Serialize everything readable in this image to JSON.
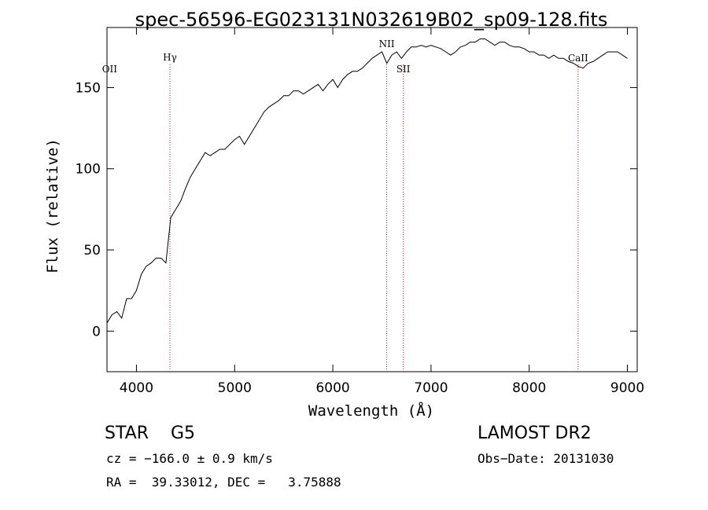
{
  "chart_data": {
    "type": "line",
    "title": "spec-56596-EG023131N032619B02_sp09-128.fits",
    "xlabel": "Wavelength (Å)",
    "ylabel": "Flux (relative)",
    "xlim": [
      3700,
      9100
    ],
    "ylim": [
      -25,
      187
    ],
    "xticks": [
      4000,
      5000,
      6000,
      7000,
      8000,
      9000
    ],
    "yticks": [
      0,
      50,
      100,
      150
    ],
    "grid": false,
    "line_color": "#000000",
    "marker_color": "#a52a2a",
    "series": [
      {
        "x": [
          3700,
          3750,
          3800,
          3850,
          3900,
          3950,
          4000,
          4050,
          4100,
          4150,
          4200,
          4250,
          4300,
          4350,
          4400,
          4450,
          4500,
          4550,
          4600,
          4650,
          4700,
          4750,
          4800,
          4850,
          4900,
          4950,
          5000,
          5050,
          5100,
          5150,
          5200,
          5250,
          5300,
          5350,
          5400,
          5450,
          5500,
          5550,
          5600,
          5650,
          5700,
          5750,
          5800,
          5850,
          5900,
          5950,
          6000,
          6050,
          6100,
          6150,
          6200,
          6250,
          6300,
          6350,
          6400,
          6450,
          6500,
          6550,
          6600,
          6650,
          6700,
          6750,
          6800,
          6850,
          6900,
          6950,
          7000,
          7050,
          7100,
          7150,
          7200,
          7250,
          7300,
          7350,
          7400,
          7450,
          7500,
          7550,
          7600,
          7650,
          7700,
          7750,
          7800,
          7850,
          7900,
          7950,
          8000,
          8050,
          8100,
          8150,
          8200,
          8250,
          8300,
          8350,
          8400,
          8450,
          8500,
          8550,
          8600,
          8650,
          8700,
          8750,
          8800,
          8850,
          8900,
          8950,
          9000
        ],
        "y": [
          5,
          10,
          12,
          8,
          20,
          20,
          25,
          35,
          40,
          42,
          45,
          45,
          42,
          70,
          75,
          80,
          88,
          95,
          100,
          105,
          110,
          108,
          110,
          112,
          112,
          115,
          118,
          120,
          115,
          120,
          125,
          130,
          135,
          138,
          140,
          142,
          145,
          145,
          148,
          148,
          146,
          148,
          150,
          152,
          148,
          152,
          155,
          150,
          155,
          158,
          160,
          160,
          162,
          165,
          168,
          170,
          172,
          165,
          170,
          172,
          168,
          172,
          175,
          175,
          176,
          175,
          176,
          175,
          174,
          172,
          170,
          172,
          175,
          176,
          178,
          178,
          180,
          180,
          178,
          176,
          178,
          178,
          176,
          175,
          175,
          174,
          172,
          172,
          170,
          170,
          168,
          170,
          168,
          168,
          166,
          165,
          163,
          162,
          165,
          166,
          168,
          170,
          172,
          172,
          172,
          170,
          168
        ]
      }
    ],
    "line_markers": [
      {
        "label": "OII",
        "wavelength": 3727,
        "dashed": false
      },
      {
        "label": "Hγ",
        "wavelength": 4341,
        "dashed": true
      },
      {
        "label": "NII",
        "wavelength": 6549,
        "dashed": true
      },
      {
        "label": "SII",
        "wavelength": 6718,
        "dashed": true
      },
      {
        "label": "CaII",
        "wavelength": 8498,
        "dashed": true
      }
    ]
  },
  "info": {
    "object_class": "STAR    G5",
    "survey": "LAMOST DR2",
    "cz": "cz = −166.0 ± 0.9 km/s",
    "obs_date": "Obs−Date: 20131030",
    "radec": "RA =  39.33012, DEC =   3.75888"
  }
}
